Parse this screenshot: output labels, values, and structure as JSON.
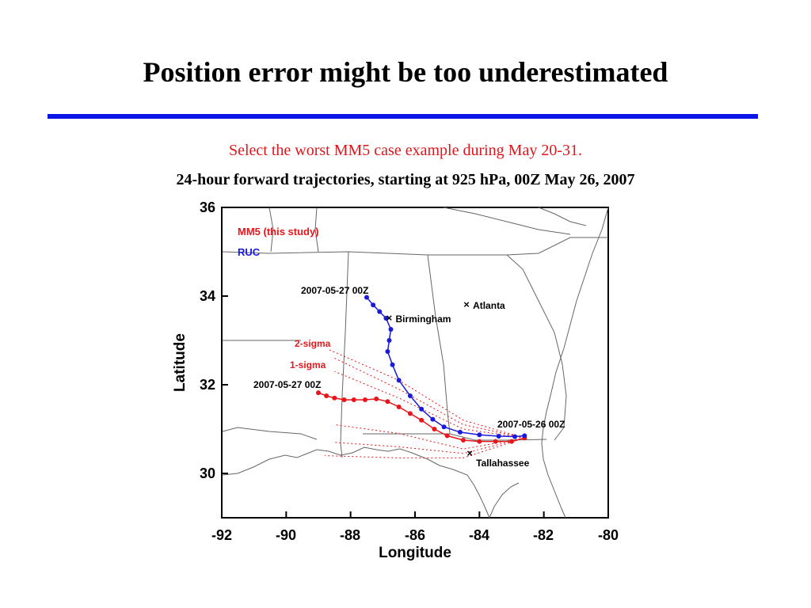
{
  "slide": {
    "title": "Position error might be too underestimated",
    "subtitle": "Select the worst MM5 case example during May 20-31.",
    "caption": "24-hour forward trajectories, starting at 925 hPa, 00Z May 26, 2007"
  },
  "colors": {
    "rule": "#0a16e6",
    "mm5": "#e8161b",
    "ruc": "#1a1adb",
    "subtitle": "#e0161b"
  },
  "map": {
    "xlabel": "Longitude",
    "ylabel": "Latitude",
    "xlim": [
      -92,
      -80
    ],
    "ylim": [
      29,
      36
    ],
    "x_ticks": [
      "-92",
      "-90",
      "-88",
      "-86",
      "-84",
      "-82",
      "-80"
    ],
    "y_ticks": [
      "36",
      "34",
      "32",
      "30"
    ],
    "legend": [
      {
        "name": "MM5 (this study)",
        "color": "#e8161b"
      },
      {
        "name": "RUC",
        "color": "#1a1adb"
      }
    ],
    "cities": [
      {
        "name": "Atlanta",
        "lon": -84.4,
        "lat": 33.8
      },
      {
        "name": "Birmingham",
        "lon": -86.8,
        "lat": 33.5
      },
      {
        "name": "Tallahassee",
        "lon": -84.3,
        "lat": 30.45
      }
    ],
    "annotations": {
      "start_label": "2007-05-26 00Z",
      "ruc_end_label": "2007-05-27 00Z",
      "mm5_end_label": "2007-05-27 00Z",
      "two_sigma_label": "2-sigma",
      "one_sigma_label": "1-sigma"
    },
    "ruc_track": [
      [
        -82.6,
        30.85
      ],
      [
        -82.9,
        30.83
      ],
      [
        -83.4,
        30.84
      ],
      [
        -84.0,
        30.87
      ],
      [
        -84.6,
        30.93
      ],
      [
        -85.1,
        31.05
      ],
      [
        -85.45,
        31.22
      ],
      [
        -85.8,
        31.45
      ],
      [
        -86.15,
        31.75
      ],
      [
        -86.5,
        32.1
      ],
      [
        -86.7,
        32.45
      ],
      [
        -86.85,
        32.75
      ],
      [
        -86.8,
        33.0
      ],
      [
        -86.75,
        33.25
      ],
      [
        -86.9,
        33.5
      ],
      [
        -87.1,
        33.65
      ],
      [
        -87.3,
        33.8
      ],
      [
        -87.5,
        33.97
      ]
    ],
    "mm5_track": [
      [
        -82.6,
        30.8
      ],
      [
        -83.0,
        30.72
      ],
      [
        -83.5,
        30.72
      ],
      [
        -84.0,
        30.72
      ],
      [
        -84.5,
        30.75
      ],
      [
        -85.0,
        30.85
      ],
      [
        -85.4,
        31.0
      ],
      [
        -85.8,
        31.2
      ],
      [
        -86.15,
        31.35
      ],
      [
        -86.5,
        31.5
      ],
      [
        -86.85,
        31.62
      ],
      [
        -87.2,
        31.68
      ],
      [
        -87.55,
        31.66
      ],
      [
        -87.9,
        31.66
      ],
      [
        -88.2,
        31.66
      ],
      [
        -88.5,
        31.7
      ],
      [
        -88.75,
        31.75
      ],
      [
        -89.0,
        31.82
      ]
    ],
    "sigma_tracks": [
      [
        [
          -82.6,
          30.8
        ],
        [
          -84.5,
          31.1
        ],
        [
          -86.5,
          31.9
        ],
        [
          -88.5,
          32.6
        ]
      ],
      [
        [
          -82.6,
          30.8
        ],
        [
          -84.5,
          31.0
        ],
        [
          -86.5,
          31.7
        ],
        [
          -88.5,
          32.3
        ]
      ],
      [
        [
          -82.6,
          30.8
        ],
        [
          -84.5,
          30.55
        ],
        [
          -86.5,
          30.9
        ],
        [
          -88.5,
          31.1
        ]
      ],
      [
        [
          -82.6,
          30.8
        ],
        [
          -84.5,
          30.45
        ],
        [
          -86.5,
          30.6
        ],
        [
          -88.5,
          30.7
        ]
      ]
    ],
    "outer_sigma_tracks": [
      [
        [
          -82.6,
          30.8
        ],
        [
          -84.5,
          31.2
        ],
        [
          -86.5,
          32.1
        ],
        [
          -88.7,
          32.8
        ]
      ],
      [
        [
          -82.6,
          30.8
        ],
        [
          -84.5,
          30.35
        ],
        [
          -86.5,
          30.35
        ],
        [
          -88.8,
          30.4
        ]
      ]
    ]
  }
}
